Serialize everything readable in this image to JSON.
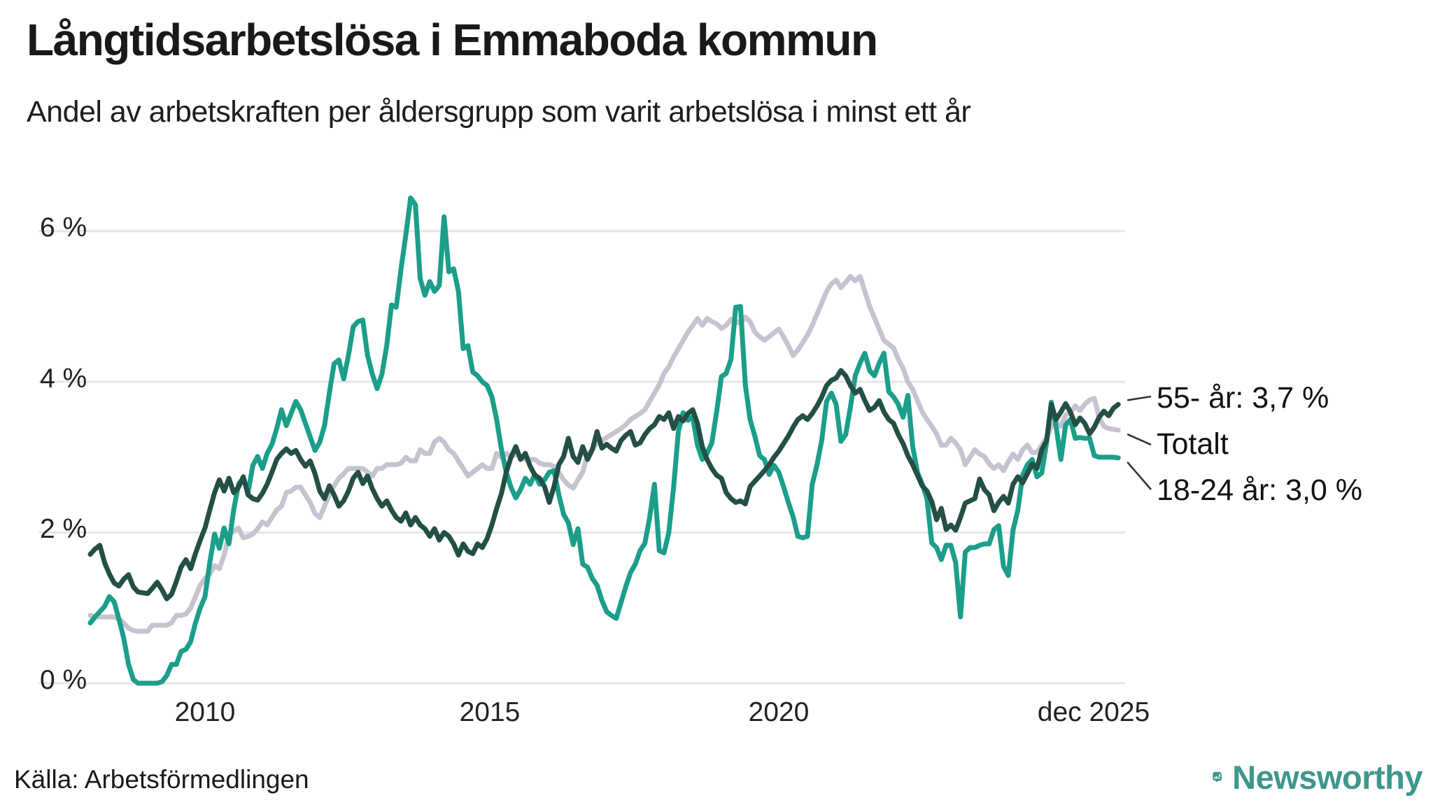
{
  "title": "Långtidsarbetslösa i Emmaboda kommun",
  "subtitle": "Andel av arbetskraften per åldersgrupp som varit arbetslösa i minst ett år",
  "source": "Källa: Arbetsförmedlingen",
  "brand": {
    "name": "Newsworthy",
    "text_color": "#3f968c",
    "icon_color": "#33998e",
    "icon_accent": "#2b887e",
    "icon_name": "newsworthy-speech-bubble-barchart-icon"
  },
  "colors": {
    "teal": "#1b9e8a",
    "darkgreen": "#234f45",
    "gray": "#c6c3d0",
    "grid": "#e7e6ea",
    "connector": "#333333"
  },
  "chart_data": {
    "type": "line",
    "title": "Långtidsarbetslösa i Emmaboda kommun",
    "subtitle": "Andel av arbetskraften per åldersgrupp som varit arbetslösa i minst ett år",
    "x_start_year": 2008,
    "x_end_label": "dec 2025",
    "months": 216,
    "ylim": [
      0,
      6.7
    ],
    "grid": "horizontal-only",
    "legend_position": "right-edge-annotations",
    "yticks": [
      {
        "label": "6 %",
        "value": 6
      },
      {
        "label": "4 %",
        "value": 4
      },
      {
        "label": "2 %",
        "value": 2
      },
      {
        "label": "0 %",
        "value": 0
      }
    ],
    "xticks": [
      {
        "label": "2010",
        "year": 2010
      },
      {
        "label": "2015",
        "year": 2015
      },
      {
        "label": "2020",
        "year": 2020
      },
      {
        "label": "dec 2025",
        "year": 2025.92
      }
    ],
    "annotations": [
      {
        "series": "55- år",
        "label": "55- år: 3,7 %"
      },
      {
        "series": "Totalt",
        "label": "Totalt"
      },
      {
        "series": "18-24 år",
        "label": "18-24 år: 3,0 %"
      }
    ],
    "series": [
      {
        "name": "Totalt",
        "color": "#c6c3d0",
        "end_value": 3.4,
        "values": [
          0.9,
          0.88,
          0.88,
          0.88,
          0.88,
          0.88,
          0.85,
          0.8,
          0.73,
          0.7,
          0.69,
          0.69,
          0.69,
          0.77,
          0.77,
          0.77,
          0.77,
          0.8,
          0.9,
          0.9,
          0.92,
          1.0,
          1.15,
          1.3,
          1.39,
          1.45,
          1.56,
          1.52,
          1.7,
          1.98,
          2.02,
          2.06,
          1.93,
          1.95,
          1.98,
          2.05,
          2.14,
          2.1,
          2.2,
          2.3,
          2.35,
          2.53,
          2.55,
          2.6,
          2.6,
          2.5,
          2.4,
          2.25,
          2.2,
          2.35,
          2.5,
          2.62,
          2.72,
          2.78,
          2.85,
          2.85,
          2.85,
          2.85,
          2.8,
          2.75,
          2.85,
          2.85,
          2.9,
          2.9,
          2.9,
          2.92,
          3.0,
          2.95,
          2.95,
          3.1,
          3.05,
          3.05,
          3.2,
          3.25,
          3.2,
          3.1,
          3.05,
          2.95,
          2.85,
          2.75,
          2.8,
          2.85,
          2.9,
          2.85,
          2.85,
          3.05,
          3.0,
          3.05,
          3.0,
          3.04,
          3.01,
          2.97,
          2.97,
          2.97,
          2.92,
          2.9,
          2.9,
          2.88,
          2.8,
          2.7,
          2.63,
          2.59,
          2.7,
          2.8,
          3.04,
          3.1,
          3.19,
          3.22,
          3.26,
          3.3,
          3.34,
          3.38,
          3.43,
          3.5,
          3.54,
          3.58,
          3.63,
          3.74,
          3.85,
          3.96,
          4.11,
          4.2,
          4.33,
          4.44,
          4.55,
          4.66,
          4.75,
          4.84,
          4.75,
          4.84,
          4.8,
          4.77,
          4.71,
          4.75,
          4.83,
          4.81,
          4.77,
          4.86,
          4.8,
          4.66,
          4.6,
          4.55,
          4.6,
          4.65,
          4.7,
          4.6,
          4.48,
          4.35,
          4.42,
          4.52,
          4.62,
          4.75,
          4.9,
          5.05,
          5.2,
          5.3,
          5.35,
          5.25,
          5.32,
          5.4,
          5.34,
          5.4,
          5.2,
          5.0,
          4.85,
          4.7,
          4.55,
          4.5,
          4.45,
          4.3,
          4.18,
          4.0,
          3.9,
          3.75,
          3.6,
          3.5,
          3.41,
          3.31,
          3.16,
          3.16,
          3.25,
          3.19,
          3.1,
          2.9,
          3.0,
          3.1,
          3.04,
          3.01,
          2.91,
          2.85,
          2.9,
          2.82,
          2.94,
          3.04,
          2.97,
          3.1,
          3.16,
          3.06,
          3.06,
          3.16,
          3.25,
          3.41,
          3.47,
          3.41,
          3.56,
          3.6,
          3.68,
          3.62,
          3.7,
          3.76,
          3.78,
          3.53,
          3.41,
          3.38,
          3.37,
          3.36
        ]
      },
      {
        "name": "18-24 år",
        "color": "#1b9e8a",
        "end_value": 3.0,
        "values": [
          0.8,
          0.88,
          0.95,
          1.02,
          1.15,
          1.08,
          0.85,
          0.6,
          0.25,
          0.05,
          0.0,
          0.0,
          0.0,
          0.0,
          0.0,
          0.02,
          0.1,
          0.25,
          0.25,
          0.42,
          0.45,
          0.55,
          0.8,
          1.0,
          1.15,
          1.6,
          1.98,
          1.79,
          2.06,
          1.85,
          2.3,
          2.64,
          2.72,
          2.53,
          2.89,
          3.01,
          2.85,
          3.05,
          3.17,
          3.38,
          3.63,
          3.42,
          3.58,
          3.74,
          3.63,
          3.45,
          3.27,
          3.09,
          3.2,
          3.42,
          3.85,
          4.24,
          4.29,
          4.04,
          4.35,
          4.73,
          4.8,
          4.82,
          4.35,
          4.1,
          3.91,
          4.1,
          4.48,
          5.02,
          4.99,
          5.5,
          5.95,
          6.44,
          6.35,
          5.37,
          5.15,
          5.33,
          5.2,
          5.28,
          6.19,
          5.46,
          5.5,
          5.2,
          4.44,
          4.48,
          4.13,
          4.08,
          4.0,
          3.95,
          3.8,
          3.5,
          3.1,
          2.8,
          2.6,
          2.46,
          2.57,
          2.72,
          2.64,
          2.77,
          2.64,
          2.7,
          2.8,
          2.82,
          2.5,
          2.24,
          2.13,
          1.84,
          2.05,
          1.58,
          1.54,
          1.39,
          1.3,
          1.1,
          0.95,
          0.9,
          0.86,
          1.07,
          1.28,
          1.47,
          1.58,
          1.76,
          1.86,
          2.2,
          2.64,
          1.76,
          1.73,
          2.0,
          2.6,
          3.34,
          3.59,
          3.49,
          3.54,
          3.16,
          2.97,
          3.05,
          3.19,
          3.6,
          4.07,
          4.11,
          4.3,
          4.99,
          5.0,
          3.96,
          3.5,
          3.28,
          3.02,
          2.97,
          2.77,
          2.89,
          2.8,
          2.61,
          2.4,
          2.21,
          1.95,
          1.93,
          1.95,
          2.64,
          2.9,
          3.23,
          3.74,
          3.85,
          3.7,
          3.21,
          3.3,
          3.67,
          4.08,
          4.25,
          4.38,
          4.15,
          4.08,
          4.25,
          4.38,
          3.87,
          3.8,
          3.7,
          3.53,
          3.82,
          3.15,
          2.8,
          2.64,
          2.45,
          1.86,
          1.8,
          1.64,
          1.83,
          1.83,
          1.6,
          0.88,
          1.74,
          1.8,
          1.8,
          1.83,
          1.85,
          1.85,
          2.04,
          2.09,
          1.55,
          1.43,
          2.03,
          2.3,
          2.76,
          2.9,
          2.97,
          2.74,
          2.79,
          3.19,
          3.73,
          3.41,
          2.97,
          3.43,
          3.5,
          3.25,
          3.26,
          3.25,
          3.25,
          3.02,
          3.0,
          3.0,
          3.0,
          3.0,
          2.99
        ]
      },
      {
        "name": "55- år",
        "color": "#234f45",
        "end_value": 3.7,
        "values": [
          1.71,
          1.78,
          1.83,
          1.6,
          1.45,
          1.33,
          1.29,
          1.38,
          1.44,
          1.28,
          1.21,
          1.2,
          1.19,
          1.26,
          1.34,
          1.24,
          1.12,
          1.18,
          1.35,
          1.54,
          1.64,
          1.52,
          1.72,
          1.9,
          2.06,
          2.3,
          2.53,
          2.7,
          2.55,
          2.72,
          2.53,
          2.6,
          2.74,
          2.5,
          2.45,
          2.43,
          2.52,
          2.64,
          2.8,
          2.97,
          3.05,
          3.11,
          3.05,
          3.09,
          2.97,
          2.88,
          2.95,
          2.78,
          2.55,
          2.45,
          2.62,
          2.5,
          2.35,
          2.42,
          2.55,
          2.72,
          2.8,
          2.65,
          2.75,
          2.58,
          2.45,
          2.35,
          2.42,
          2.3,
          2.2,
          2.15,
          2.26,
          2.1,
          2.2,
          2.1,
          2.05,
          1.95,
          2.05,
          1.9,
          2.0,
          1.95,
          1.85,
          1.7,
          1.85,
          1.75,
          1.72,
          1.85,
          1.8,
          1.92,
          2.1,
          2.32,
          2.52,
          2.8,
          3.0,
          3.14,
          2.97,
          3.05,
          2.88,
          2.76,
          2.72,
          2.61,
          2.4,
          2.61,
          2.9,
          3.01,
          3.25,
          3.01,
          2.93,
          3.14,
          2.97,
          3.1,
          3.34,
          3.12,
          3.17,
          3.12,
          3.08,
          3.22,
          3.29,
          3.34,
          3.16,
          3.19,
          3.3,
          3.38,
          3.43,
          3.54,
          3.5,
          3.59,
          3.38,
          3.54,
          3.48,
          3.58,
          3.63,
          3.45,
          3.14,
          2.97,
          2.85,
          2.76,
          2.72,
          2.53,
          2.45,
          2.4,
          2.42,
          2.38,
          2.61,
          2.68,
          2.75,
          2.82,
          2.9,
          3.0,
          3.08,
          3.18,
          3.28,
          3.4,
          3.5,
          3.55,
          3.5,
          3.58,
          3.68,
          3.8,
          3.95,
          4.02,
          4.05,
          4.15,
          4.08,
          3.95,
          3.85,
          3.9,
          3.75,
          3.62,
          3.66,
          3.75,
          3.6,
          3.5,
          3.45,
          3.3,
          3.18,
          3.02,
          2.9,
          2.76,
          2.62,
          2.55,
          2.41,
          2.17,
          2.32,
          2.04,
          2.1,
          2.03,
          2.2,
          2.39,
          2.42,
          2.45,
          2.71,
          2.57,
          2.5,
          2.29,
          2.4,
          2.48,
          2.39,
          2.64,
          2.74,
          2.66,
          2.78,
          2.91,
          2.85,
          3.1,
          3.22,
          3.7,
          3.5,
          3.6,
          3.71,
          3.6,
          3.43,
          3.52,
          3.45,
          3.31,
          3.4,
          3.53,
          3.61,
          3.55,
          3.65,
          3.7
        ]
      }
    ]
  }
}
